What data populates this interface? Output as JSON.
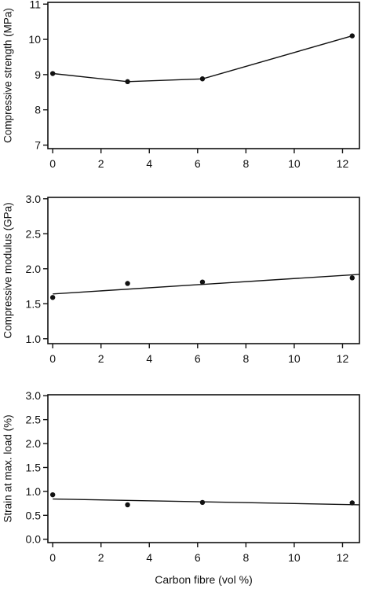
{
  "chart_data": [
    {
      "type": "line",
      "ylabel": "Compressive strength (MPa)",
      "xlabel": "",
      "xlim": [
        -0.2,
        12.7
      ],
      "ylim": [
        6.9,
        11.05
      ],
      "xticks": [
        0,
        2,
        4,
        6,
        8,
        10,
        12
      ],
      "yticks": [
        7,
        8,
        9,
        10,
        11
      ],
      "tick_labels_x": [
        "0",
        "2",
        "4",
        "6",
        "8",
        "10",
        "12"
      ],
      "tick_labels_y": [
        "7",
        "8",
        "9",
        "10",
        "11"
      ],
      "points": {
        "x": [
          0,
          3.1,
          6.2,
          12.4
        ],
        "y": [
          9.03,
          8.8,
          8.88,
          10.1
        ]
      },
      "fit_line": {
        "x": [
          0,
          3.1,
          6.2,
          12.4
        ],
        "y": [
          9.03,
          8.8,
          8.88,
          10.1
        ]
      }
    },
    {
      "type": "scatter",
      "ylabel": "Compressive modulus (GPa)",
      "xlabel": "",
      "xlim": [
        -0.2,
        12.7
      ],
      "ylim": [
        0.93,
        3.02
      ],
      "xticks": [
        0,
        2,
        4,
        6,
        8,
        10,
        12
      ],
      "yticks": [
        1.0,
        1.5,
        2.0,
        2.5,
        3.0
      ],
      "tick_labels_x": [
        "0",
        "2",
        "4",
        "6",
        "8",
        "10",
        "12"
      ],
      "tick_labels_y": [
        "1.0",
        "1.5",
        "2.0",
        "2.5",
        "3.0"
      ],
      "points": {
        "x": [
          0,
          3.1,
          6.2,
          12.4
        ],
        "y": [
          1.59,
          1.79,
          1.81,
          1.87
        ]
      },
      "fit_line": {
        "x": [
          0,
          12.7
        ],
        "y": [
          1.64,
          1.92
        ]
      }
    },
    {
      "type": "scatter",
      "ylabel": "Strain at max. load (%)",
      "xlabel": "Carbon fibre (vol %)",
      "xlim": [
        -0.2,
        12.7
      ],
      "ylim": [
        -0.07,
        3.02
      ],
      "xticks": [
        0,
        2,
        4,
        6,
        8,
        10,
        12
      ],
      "yticks": [
        0.0,
        0.5,
        1.0,
        1.5,
        2.0,
        2.5,
        3.0
      ],
      "tick_labels_x": [
        "0",
        "2",
        "4",
        "6",
        "8",
        "10",
        "12"
      ],
      "tick_labels_y": [
        "0.0",
        "0.5",
        "1.0",
        "1.5",
        "2.0",
        "2.5",
        "3.0"
      ],
      "points": {
        "x": [
          0,
          3.1,
          6.2,
          12.4
        ],
        "y": [
          0.93,
          0.72,
          0.77,
          0.76
        ]
      },
      "fit_line": {
        "x": [
          0,
          12.7
        ],
        "y": [
          0.84,
          0.72
        ]
      }
    }
  ]
}
